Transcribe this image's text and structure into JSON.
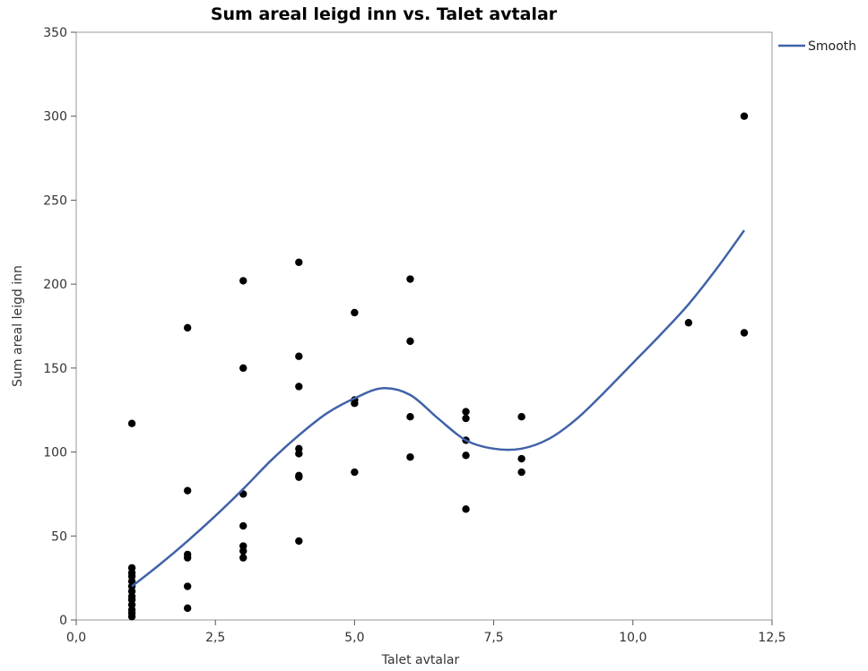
{
  "chart_data": {
    "type": "scatter",
    "title": "Sum areal leigd inn vs. Talet avtalar",
    "xlabel": "Talet avtalar",
    "ylabel": "Sum areal leigd inn",
    "xlim": [
      0,
      12.5
    ],
    "ylim": [
      0,
      350
    ],
    "x_ticks": [
      "0,0",
      "2,5",
      "5,0",
      "7,5",
      "10,0",
      "12,5"
    ],
    "y_ticks": [
      "0",
      "50",
      "100",
      "150",
      "200",
      "250",
      "300",
      "350"
    ],
    "grid": false,
    "legend_position": "top-right",
    "series": [
      {
        "kind": "scatter",
        "color": "#000000",
        "points": [
          [
            1,
            117
          ],
          [
            1,
            31
          ],
          [
            1,
            28
          ],
          [
            1,
            26
          ],
          [
            1,
            23
          ],
          [
            1,
            20
          ],
          [
            1,
            17
          ],
          [
            1,
            14
          ],
          [
            1,
            12
          ],
          [
            1,
            9
          ],
          [
            1,
            6
          ],
          [
            1,
            4
          ],
          [
            1,
            2
          ],
          [
            2,
            174
          ],
          [
            2,
            77
          ],
          [
            2,
            39
          ],
          [
            2,
            37
          ],
          [
            2,
            20
          ],
          [
            2,
            7
          ],
          [
            3,
            202
          ],
          [
            3,
            150
          ],
          [
            3,
            75
          ],
          [
            3,
            56
          ],
          [
            3,
            44
          ],
          [
            3,
            41
          ],
          [
            3,
            37
          ],
          [
            4,
            213
          ],
          [
            4,
            157
          ],
          [
            4,
            139
          ],
          [
            4,
            102
          ],
          [
            4,
            99
          ],
          [
            4,
            86
          ],
          [
            4,
            85
          ],
          [
            4,
            47
          ],
          [
            5,
            183
          ],
          [
            5,
            131
          ],
          [
            5,
            129
          ],
          [
            5,
            88
          ],
          [
            6,
            203
          ],
          [
            6,
            166
          ],
          [
            6,
            121
          ],
          [
            6,
            97
          ],
          [
            7,
            124
          ],
          [
            7,
            120
          ],
          [
            7,
            107
          ],
          [
            7,
            98
          ],
          [
            7,
            66
          ],
          [
            8,
            121
          ],
          [
            8,
            96
          ],
          [
            8,
            88
          ],
          [
            11,
            177
          ],
          [
            12,
            300
          ],
          [
            12,
            171
          ]
        ]
      },
      {
        "kind": "line",
        "name": "Smooth",
        "color": "#4062A8",
        "points": [
          [
            1,
            20
          ],
          [
            1.5,
            33
          ],
          [
            2,
            47
          ],
          [
            2.5,
            62
          ],
          [
            3,
            78
          ],
          [
            3.5,
            95
          ],
          [
            4,
            110
          ],
          [
            4.5,
            123
          ],
          [
            5,
            132
          ],
          [
            5.5,
            138
          ],
          [
            6,
            134
          ],
          [
            6.5,
            120
          ],
          [
            7,
            107
          ],
          [
            7.5,
            102
          ],
          [
            8,
            102
          ],
          [
            8.5,
            108
          ],
          [
            9,
            120
          ],
          [
            9.5,
            136
          ],
          [
            10,
            153
          ],
          [
            10.5,
            170
          ],
          [
            11,
            188
          ],
          [
            11.5,
            209
          ],
          [
            12,
            232
          ]
        ]
      }
    ]
  }
}
